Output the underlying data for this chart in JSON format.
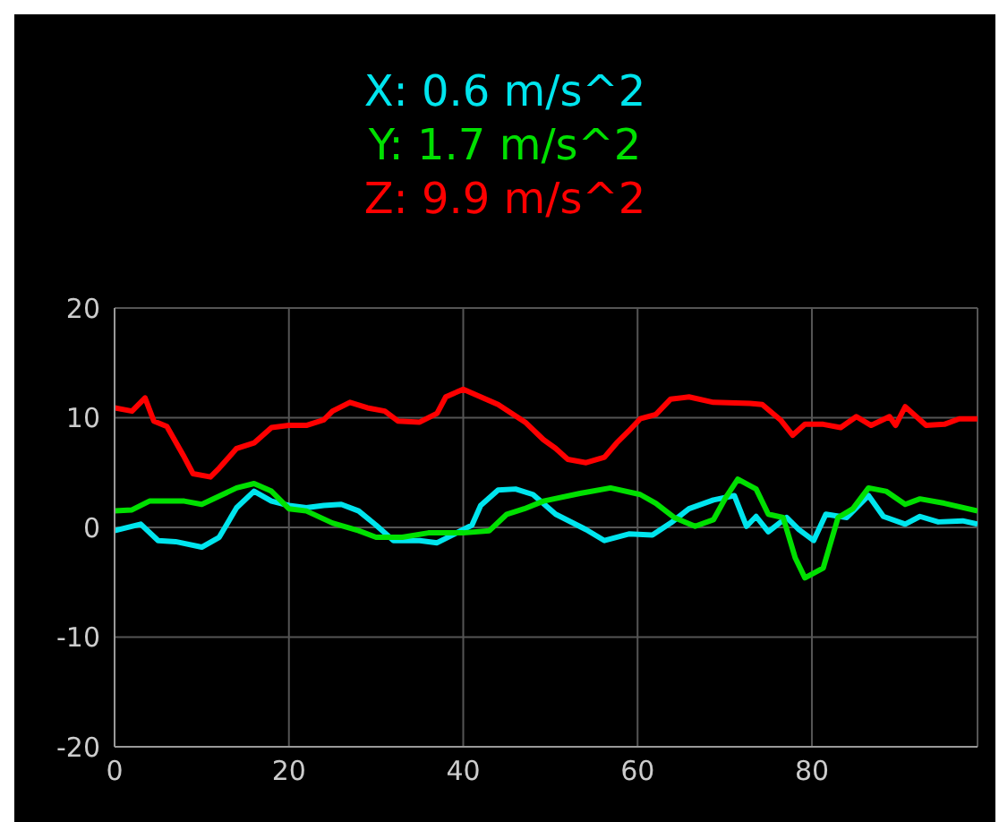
{
  "chart_data": {
    "type": "line",
    "xlim": [
      0,
      99
    ],
    "xticks": [
      0,
      20,
      40,
      60,
      80
    ],
    "ylim": [
      -20,
      20
    ],
    "yticks": [
      -20,
      -10,
      0,
      10,
      20
    ],
    "grid": true,
    "legend": "top",
    "marker": "none",
    "line_style": "solid",
    "series": [
      {
        "name": "X: 0.6 m/s^2",
        "color": "#00e5ee",
        "x": [
          0,
          3,
          5,
          7,
          10,
          12,
          14,
          16,
          18,
          20,
          22,
          24,
          26,
          28,
          30,
          32,
          35,
          37,
          39,
          41,
          42,
          44,
          46,
          48,
          50.6,
          54.1,
          56.2,
          59,
          61.7,
          63.8,
          65.9,
          68.7,
          71.1,
          72.5,
          73.6,
          75,
          77.1,
          78.5,
          80.2,
          81.6,
          84,
          86.5,
          88.2,
          90.7,
          92.4,
          94.5,
          97.3,
          99
        ],
        "values": [
          -0.3,
          0.3,
          -1.2,
          -1.3,
          -1.8,
          -0.9,
          1.8,
          3.3,
          2.4,
          2.0,
          1.8,
          2.0,
          2.1,
          1.5,
          0.2,
          -1.2,
          -1.2,
          -1.4,
          -0.6,
          0.2,
          2.0,
          3.4,
          3.5,
          3.0,
          1.2,
          -0.2,
          -1.2,
          -0.6,
          -0.7,
          0.4,
          1.7,
          2.5,
          2.9,
          0.1,
          1.0,
          -0.4,
          0.9,
          -0.2,
          -1.2,
          1.2,
          0.9,
          2.9,
          1.0,
          0.3,
          1.0,
          0.5,
          0.6,
          0.3
        ]
      },
      {
        "name": "Y: 1.7 m/s^2",
        "color": "#00e000",
        "x": [
          0,
          2,
          4,
          8,
          10,
          14,
          16,
          18,
          20,
          22,
          25,
          28,
          30,
          33,
          36,
          40,
          43,
          45,
          47,
          49.2,
          53.4,
          56.9,
          60.3,
          62.1,
          64.2,
          66.6,
          68.7,
          70.1,
          71.5,
          73.6,
          75,
          76.7,
          78.1,
          79.2,
          81.3,
          83,
          84.7,
          86.5,
          88.5,
          90.7,
          92.4,
          95.2,
          99
        ],
        "values": [
          1.5,
          1.6,
          2.4,
          2.4,
          2.1,
          3.6,
          4.0,
          3.3,
          1.7,
          1.5,
          0.4,
          -0.3,
          -0.9,
          -0.9,
          -0.5,
          -0.5,
          -0.3,
          1.2,
          1.7,
          2.4,
          3.1,
          3.6,
          3.0,
          2.2,
          0.9,
          0.1,
          0.7,
          2.7,
          4.4,
          3.5,
          1.2,
          0.9,
          -2.8,
          -4.6,
          -3.7,
          0.9,
          1.7,
          3.6,
          3.3,
          2.1,
          2.6,
          2.2,
          1.5
        ]
      },
      {
        "name": "Z: 9.9 m/s^2",
        "color": "#ff0000",
        "x": [
          0,
          2,
          3.5,
          4.5,
          6,
          8,
          9,
          11,
          12,
          14,
          16,
          18,
          20,
          22,
          24,
          25,
          27,
          29,
          31,
          32.5,
          35,
          37,
          38,
          40,
          42,
          44,
          47.1,
          49.2,
          50.6,
          52,
          54.1,
          56.2,
          57.6,
          59,
          60.3,
          62.1,
          63.8,
          65.9,
          68.7,
          72.9,
          74.3,
          76.4,
          77.8,
          79.2,
          81.3,
          83.3,
          85.1,
          86.8,
          88.9,
          89.6,
          90.7,
          93.1,
          95.2,
          96.9,
          99
        ],
        "values": [
          10.9,
          10.6,
          11.8,
          9.7,
          9.2,
          6.4,
          4.9,
          4.6,
          5.4,
          7.2,
          7.7,
          9.1,
          9.3,
          9.3,
          9.8,
          10.6,
          11.4,
          10.9,
          10.6,
          9.7,
          9.6,
          10.4,
          11.9,
          12.6,
          11.9,
          11.2,
          9.6,
          8.0,
          7.2,
          6.2,
          5.9,
          6.4,
          7.7,
          8.8,
          9.9,
          10.3,
          11.7,
          11.9,
          11.4,
          11.3,
          11.2,
          9.8,
          8.4,
          9.4,
          9.4,
          9.1,
          10.1,
          9.3,
          10.1,
          9.3,
          11.0,
          9.3,
          9.4,
          9.9,
          9.9
        ]
      }
    ]
  }
}
